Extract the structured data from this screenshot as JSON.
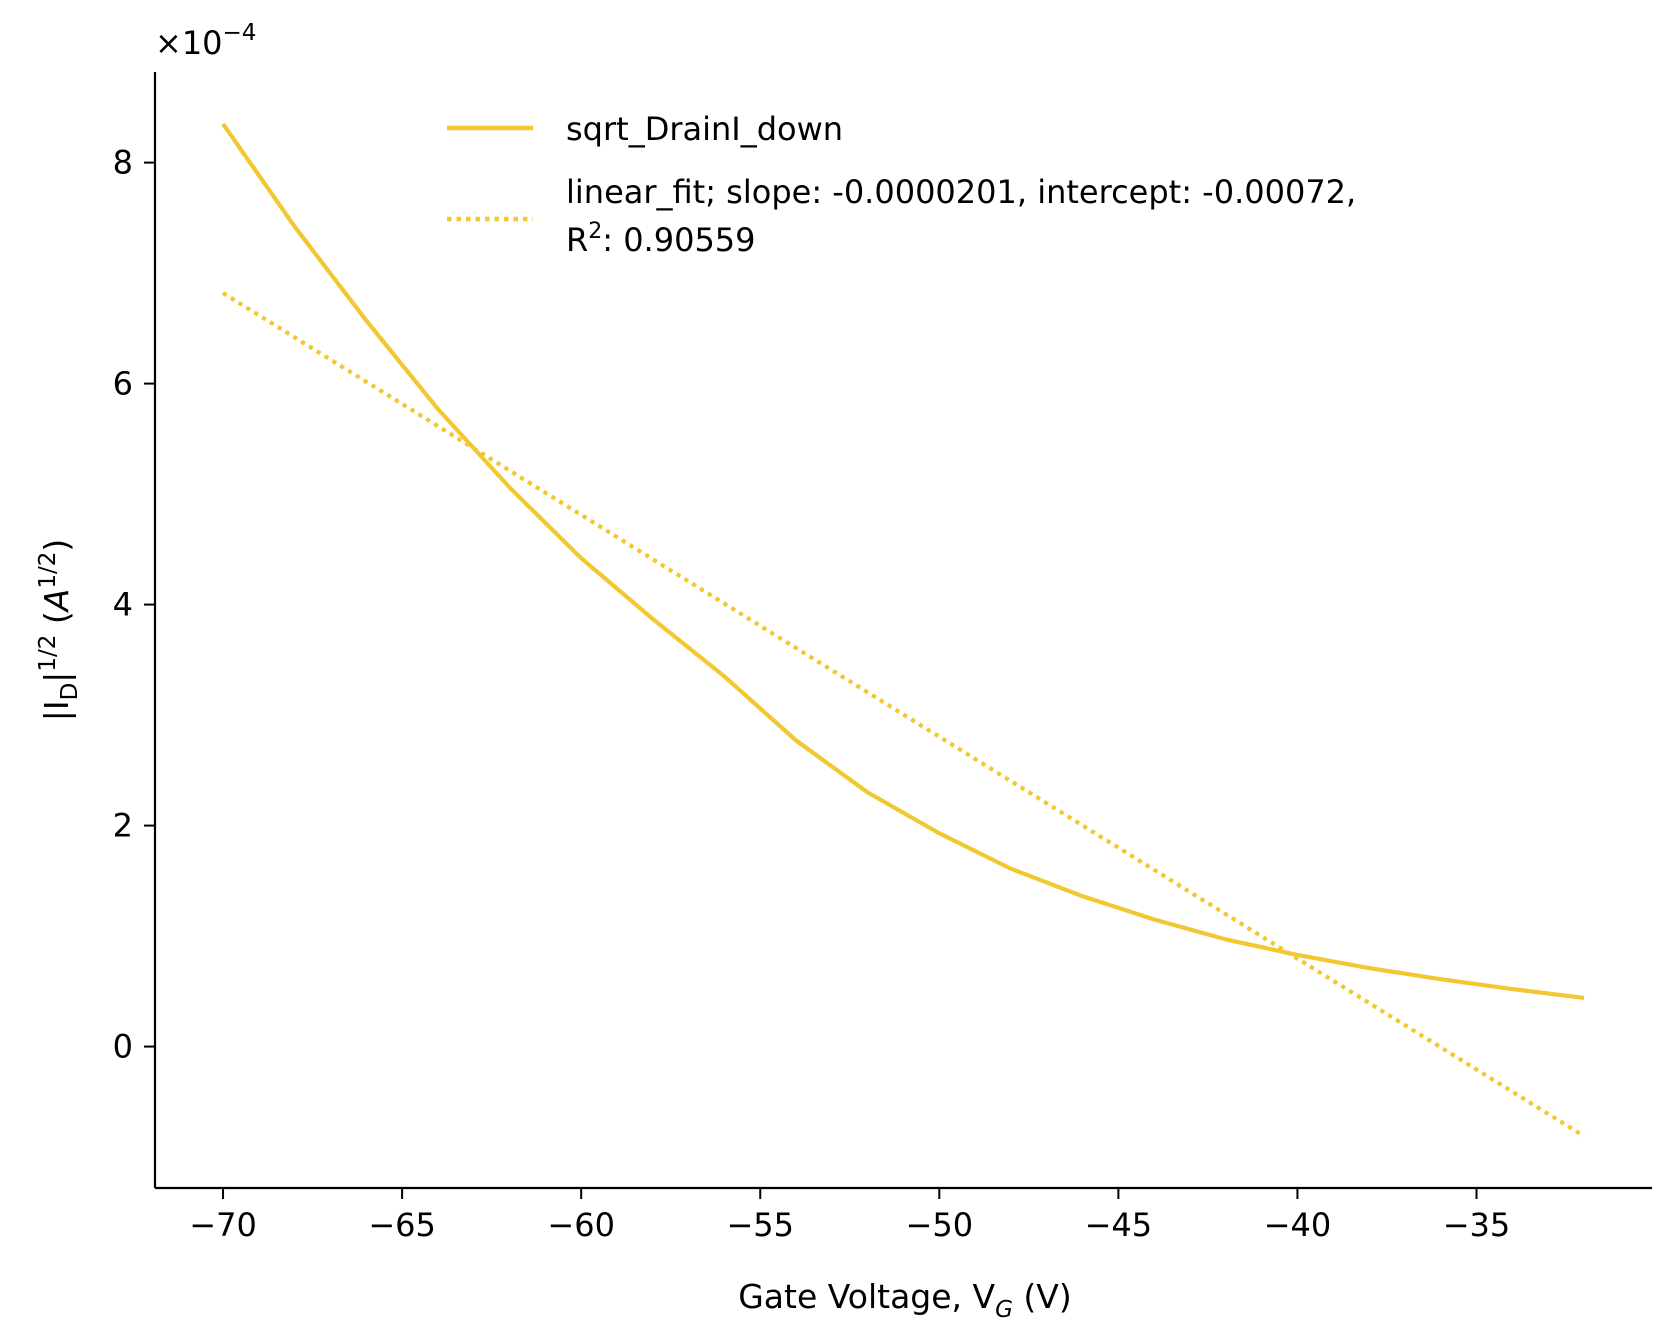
{
  "chart_data": {
    "type": "line",
    "xlabel": {
      "main": "Gate Voltage, V",
      "sub": "G",
      "unit": " (V)"
    },
    "ylabel": {
      "open": "|I",
      "sub": "D",
      "close": "|",
      "sup": "1/2",
      "unit_open": " (",
      "unit_var": "A",
      "unit_sup": "1/2",
      "unit_close": ")"
    },
    "offset_label": {
      "base": "×10",
      "exp": "−4"
    },
    "x_ticks": [
      -70,
      -65,
      -60,
      -55,
      -50,
      -45,
      -40,
      -35
    ],
    "x_tick_labels": [
      "−70",
      "−65",
      "−60",
      "−55",
      "−50",
      "−45",
      "−40",
      "−35"
    ],
    "y_ticks": [
      0,
      2,
      4,
      6,
      8
    ],
    "y_tick_labels": [
      "0",
      "2",
      "4",
      "6",
      "8"
    ],
    "xlim": [
      -71.9,
      -30.1
    ],
    "ylim": [
      -1.28,
      8.82
    ],
    "y_scale_note": "y values in units of 1e-4 A^(1/2)",
    "grid": false,
    "legend_placement": "top-center",
    "series": [
      {
        "name": "sqrt_DrainI_down",
        "style": "solid",
        "color": "#f2c832",
        "x": [
          -70,
          -68,
          -66,
          -64,
          -62,
          -60,
          -58,
          -56,
          -54,
          -52,
          -50,
          -48,
          -46,
          -44,
          -42,
          -40,
          -38,
          -36,
          -34,
          -32
        ],
        "y": [
          8.35,
          7.42,
          6.57,
          5.77,
          5.06,
          4.42,
          3.87,
          3.35,
          2.77,
          2.3,
          1.93,
          1.61,
          1.36,
          1.15,
          0.97,
          0.83,
          0.71,
          0.61,
          0.52,
          0.44
        ]
      },
      {
        "name": "linear_fit; slope: -0.0000201, intercept: -0.00072,",
        "name_line2": {
          "pre": "R",
          "sup": "2",
          "post": ": 0.90559"
        },
        "style": "dotted",
        "color": "#f2c832",
        "x": [
          -70,
          -32
        ],
        "y": [
          6.82,
          -0.81
        ]
      }
    ]
  }
}
